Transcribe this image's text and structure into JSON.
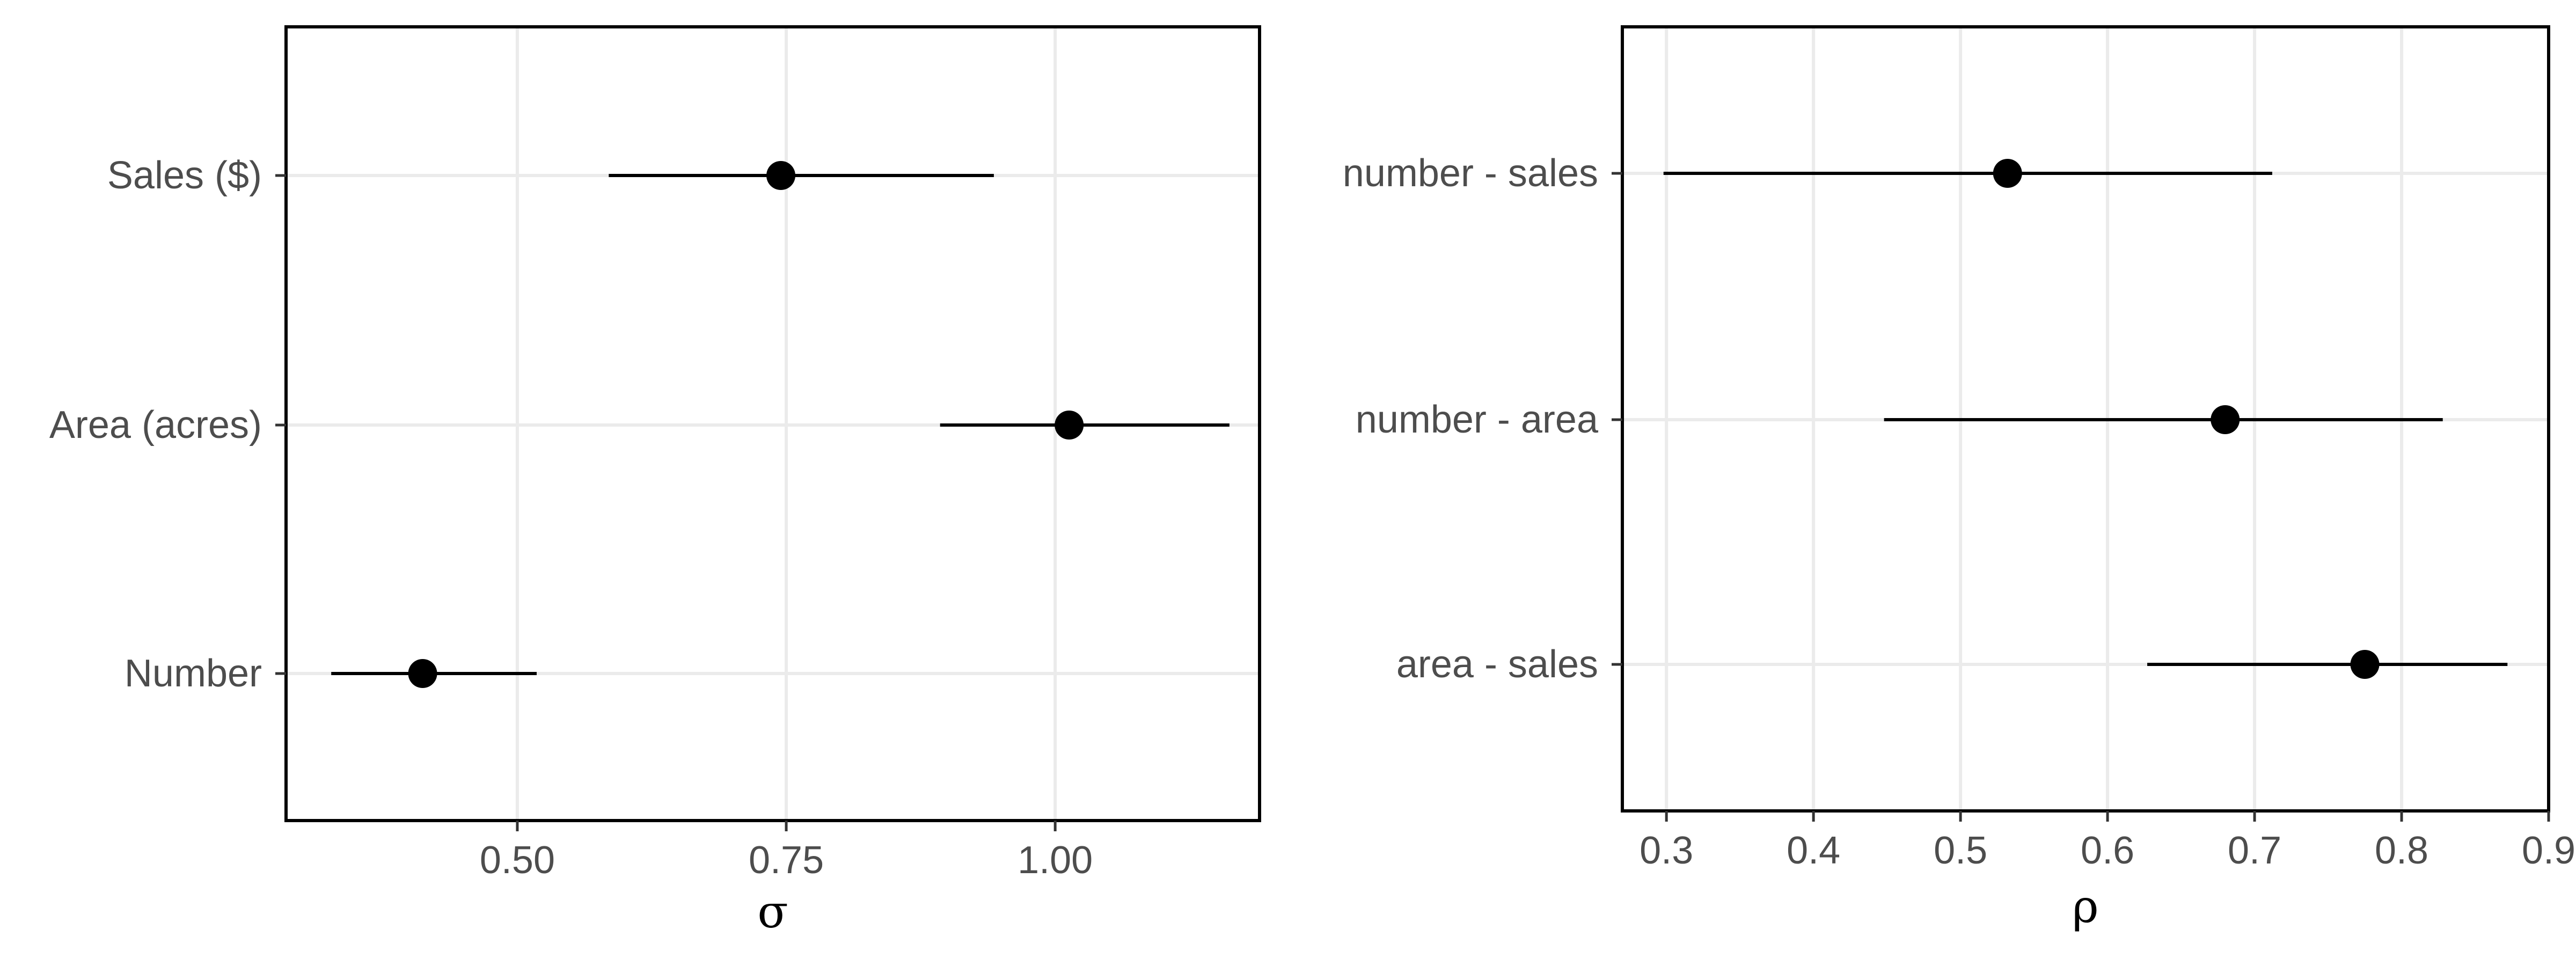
{
  "chart_data": [
    {
      "type": "scatter",
      "title": "",
      "xlabel": "σ",
      "ylabel": "",
      "xlim": [
        0.285,
        1.19
      ],
      "x_ticks": [
        "0.50",
        "0.75",
        "1.00"
      ],
      "x_tick_values": [
        0.5,
        0.75,
        1.0
      ],
      "categories": [
        "Sales ($)",
        "Area (acres)",
        "Number"
      ],
      "estimate": [
        0.745,
        1.013,
        0.412
      ],
      "lower": [
        0.585,
        0.893,
        0.327
      ],
      "upper": [
        0.943,
        1.162,
        0.518
      ],
      "grid": true
    },
    {
      "type": "scatter",
      "title": "",
      "xlabel": "ρ",
      "ylabel": "",
      "xlim": [
        0.27,
        0.9
      ],
      "x_ticks": [
        "0.3",
        "0.4",
        "0.5",
        "0.6",
        "0.7",
        "0.8",
        "0.9"
      ],
      "x_tick_values": [
        0.3,
        0.4,
        0.5,
        0.6,
        0.7,
        0.8,
        0.9
      ],
      "categories": [
        "number - sales",
        "number - area",
        "area - sales"
      ],
      "estimate": [
        0.532,
        0.68,
        0.775
      ],
      "lower": [
        0.298,
        0.448,
        0.627
      ],
      "upper": [
        0.712,
        0.828,
        0.872
      ],
      "grid": true
    }
  ]
}
